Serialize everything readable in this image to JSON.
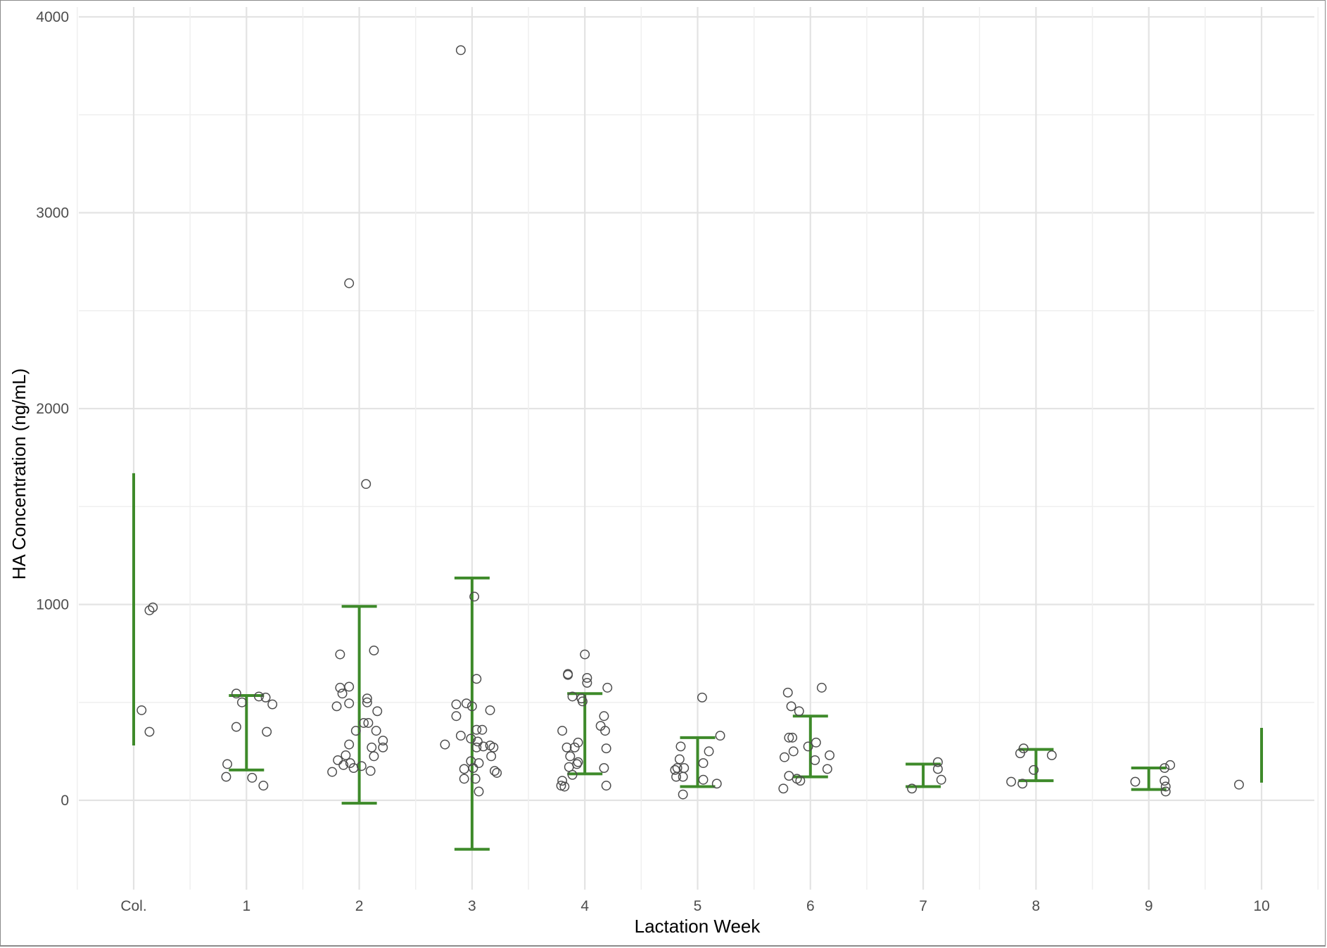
{
  "chart_data": {
    "type": "scatter",
    "title": "",
    "xlabel": "Lactation Week",
    "ylabel": "HA Concentration (ng/mL)",
    "categories": [
      "Col.",
      "1",
      "2",
      "3",
      "4",
      "5",
      "6",
      "7",
      "8",
      "9",
      "10"
    ],
    "ylim": [
      -450,
      4050
    ],
    "yticks": [
      0,
      1000,
      2000,
      3000,
      4000
    ],
    "grid": true,
    "legend": "none",
    "point_color": "#4d4d4d",
    "errorbar_color": "#3e8a2a",
    "points": [
      {
        "cat": 0,
        "dx": 0.07,
        "y": 460
      },
      {
        "cat": 0,
        "dx": 0.14,
        "y": 350
      },
      {
        "cat": 0,
        "dx": 0.14,
        "y": 970
      },
      {
        "cat": 0,
        "dx": 0.17,
        "y": 985
      },
      {
        "cat": 1,
        "dx": -0.18,
        "y": 120
      },
      {
        "cat": 1,
        "dx": -0.17,
        "y": 185
      },
      {
        "cat": 1,
        "dx": -0.09,
        "y": 375
      },
      {
        "cat": 1,
        "dx": -0.09,
        "y": 545
      },
      {
        "cat": 1,
        "dx": -0.04,
        "y": 500
      },
      {
        "cat": 1,
        "dx": 0.05,
        "y": 115
      },
      {
        "cat": 1,
        "dx": 0.11,
        "y": 530
      },
      {
        "cat": 1,
        "dx": 0.15,
        "y": 75
      },
      {
        "cat": 1,
        "dx": 0.17,
        "y": 525
      },
      {
        "cat": 1,
        "dx": 0.18,
        "y": 350
      },
      {
        "cat": 1,
        "dx": 0.23,
        "y": 490
      },
      {
        "cat": 2,
        "dx": 0.06,
        "y": 1615
      },
      {
        "cat": 2,
        "dx": -0.09,
        "y": 2640
      },
      {
        "cat": 2,
        "dx": -0.24,
        "y": 145
      },
      {
        "cat": 2,
        "dx": -0.19,
        "y": 205
      },
      {
        "cat": 2,
        "dx": -0.2,
        "y": 480
      },
      {
        "cat": 2,
        "dx": -0.17,
        "y": 745
      },
      {
        "cat": 2,
        "dx": -0.17,
        "y": 575
      },
      {
        "cat": 2,
        "dx": -0.15,
        "y": 545
      },
      {
        "cat": 2,
        "dx": -0.14,
        "y": 180
      },
      {
        "cat": 2,
        "dx": -0.12,
        "y": 230
      },
      {
        "cat": 2,
        "dx": -0.09,
        "y": 580
      },
      {
        "cat": 2,
        "dx": -0.09,
        "y": 495
      },
      {
        "cat": 2,
        "dx": -0.09,
        "y": 285
      },
      {
        "cat": 2,
        "dx": -0.08,
        "y": 190
      },
      {
        "cat": 2,
        "dx": -0.05,
        "y": 165
      },
      {
        "cat": 2,
        "dx": -0.03,
        "y": 355
      },
      {
        "cat": 2,
        "dx": 0.02,
        "y": 175
      },
      {
        "cat": 2,
        "dx": 0.04,
        "y": 395
      },
      {
        "cat": 2,
        "dx": 0.07,
        "y": 520
      },
      {
        "cat": 2,
        "dx": 0.07,
        "y": 500
      },
      {
        "cat": 2,
        "dx": 0.08,
        "y": 395
      },
      {
        "cat": 2,
        "dx": 0.1,
        "y": 150
      },
      {
        "cat": 2,
        "dx": 0.11,
        "y": 270
      },
      {
        "cat": 2,
        "dx": 0.13,
        "y": 765
      },
      {
        "cat": 2,
        "dx": 0.13,
        "y": 225
      },
      {
        "cat": 2,
        "dx": 0.15,
        "y": 355
      },
      {
        "cat": 2,
        "dx": 0.16,
        "y": 455
      },
      {
        "cat": 2,
        "dx": 0.21,
        "y": 305
      },
      {
        "cat": 2,
        "dx": 0.21,
        "y": 270
      },
      {
        "cat": 3,
        "dx": -0.1,
        "y": 3830
      },
      {
        "cat": 3,
        "dx": 0.02,
        "y": 1040
      },
      {
        "cat": 3,
        "dx": -0.24,
        "y": 285
      },
      {
        "cat": 3,
        "dx": -0.14,
        "y": 430
      },
      {
        "cat": 3,
        "dx": -0.14,
        "y": 490
      },
      {
        "cat": 3,
        "dx": -0.1,
        "y": 330
      },
      {
        "cat": 3,
        "dx": -0.07,
        "y": 110
      },
      {
        "cat": 3,
        "dx": -0.07,
        "y": 160
      },
      {
        "cat": 3,
        "dx": -0.05,
        "y": 495
      },
      {
        "cat": 3,
        "dx": -0.01,
        "y": 200
      },
      {
        "cat": 3,
        "dx": -0.01,
        "y": 315
      },
      {
        "cat": 3,
        "dx": 0.0,
        "y": 480
      },
      {
        "cat": 3,
        "dx": 0.01,
        "y": 165
      },
      {
        "cat": 3,
        "dx": 0.03,
        "y": 110
      },
      {
        "cat": 3,
        "dx": 0.04,
        "y": 620
      },
      {
        "cat": 3,
        "dx": 0.04,
        "y": 360
      },
      {
        "cat": 3,
        "dx": 0.04,
        "y": 270
      },
      {
        "cat": 3,
        "dx": 0.05,
        "y": 300
      },
      {
        "cat": 3,
        "dx": 0.06,
        "y": 190
      },
      {
        "cat": 3,
        "dx": 0.06,
        "y": 45
      },
      {
        "cat": 3,
        "dx": 0.09,
        "y": 360
      },
      {
        "cat": 3,
        "dx": 0.1,
        "y": 275
      },
      {
        "cat": 3,
        "dx": 0.16,
        "y": 460
      },
      {
        "cat": 3,
        "dx": 0.16,
        "y": 280
      },
      {
        "cat": 3,
        "dx": 0.17,
        "y": 225
      },
      {
        "cat": 3,
        "dx": 0.19,
        "y": 270
      },
      {
        "cat": 3,
        "dx": 0.2,
        "y": 150
      },
      {
        "cat": 3,
        "dx": 0.22,
        "y": 140
      },
      {
        "cat": 4,
        "dx": -0.21,
        "y": 75
      },
      {
        "cat": 4,
        "dx": -0.2,
        "y": 100
      },
      {
        "cat": 4,
        "dx": -0.2,
        "y": 355
      },
      {
        "cat": 4,
        "dx": -0.18,
        "y": 70
      },
      {
        "cat": 4,
        "dx": -0.16,
        "y": 270
      },
      {
        "cat": 4,
        "dx": -0.15,
        "y": 640
      },
      {
        "cat": 4,
        "dx": -0.15,
        "y": 645
      },
      {
        "cat": 4,
        "dx": -0.14,
        "y": 170
      },
      {
        "cat": 4,
        "dx": -0.13,
        "y": 225
      },
      {
        "cat": 4,
        "dx": -0.11,
        "y": 530
      },
      {
        "cat": 4,
        "dx": -0.11,
        "y": 130
      },
      {
        "cat": 4,
        "dx": -0.09,
        "y": 270
      },
      {
        "cat": 4,
        "dx": -0.07,
        "y": 185
      },
      {
        "cat": 4,
        "dx": -0.06,
        "y": 295
      },
      {
        "cat": 4,
        "dx": -0.06,
        "y": 195
      },
      {
        "cat": 4,
        "dx": -0.03,
        "y": 520
      },
      {
        "cat": 4,
        "dx": -0.02,
        "y": 505
      },
      {
        "cat": 4,
        "dx": 0.0,
        "y": 745
      },
      {
        "cat": 4,
        "dx": 0.02,
        "y": 625
      },
      {
        "cat": 4,
        "dx": 0.02,
        "y": 600
      },
      {
        "cat": 4,
        "dx": 0.14,
        "y": 380
      },
      {
        "cat": 4,
        "dx": 0.17,
        "y": 430
      },
      {
        "cat": 4,
        "dx": 0.17,
        "y": 165
      },
      {
        "cat": 4,
        "dx": 0.18,
        "y": 355
      },
      {
        "cat": 4,
        "dx": 0.19,
        "y": 265
      },
      {
        "cat": 4,
        "dx": 0.19,
        "y": 75
      },
      {
        "cat": 4,
        "dx": 0.2,
        "y": 575
      },
      {
        "cat": 5,
        "dx": -0.2,
        "y": 155
      },
      {
        "cat": 5,
        "dx": -0.19,
        "y": 120
      },
      {
        "cat": 5,
        "dx": -0.18,
        "y": 165
      },
      {
        "cat": 5,
        "dx": -0.16,
        "y": 210
      },
      {
        "cat": 5,
        "dx": -0.15,
        "y": 275
      },
      {
        "cat": 5,
        "dx": -0.13,
        "y": 120
      },
      {
        "cat": 5,
        "dx": -0.13,
        "y": 30
      },
      {
        "cat": 5,
        "dx": -0.12,
        "y": 165
      },
      {
        "cat": 5,
        "dx": 0.04,
        "y": 525
      },
      {
        "cat": 5,
        "dx": 0.05,
        "y": 190
      },
      {
        "cat": 5,
        "dx": 0.05,
        "y": 105
      },
      {
        "cat": 5,
        "dx": 0.1,
        "y": 250
      },
      {
        "cat": 5,
        "dx": 0.17,
        "y": 85
      },
      {
        "cat": 5,
        "dx": 0.2,
        "y": 330
      },
      {
        "cat": 6,
        "dx": -0.24,
        "y": 60
      },
      {
        "cat": 6,
        "dx": -0.23,
        "y": 220
      },
      {
        "cat": 6,
        "dx": -0.2,
        "y": 550
      },
      {
        "cat": 6,
        "dx": -0.19,
        "y": 125
      },
      {
        "cat": 6,
        "dx": -0.19,
        "y": 320
      },
      {
        "cat": 6,
        "dx": -0.17,
        "y": 480
      },
      {
        "cat": 6,
        "dx": -0.16,
        "y": 320
      },
      {
        "cat": 6,
        "dx": -0.15,
        "y": 250
      },
      {
        "cat": 6,
        "dx": -0.12,
        "y": 110
      },
      {
        "cat": 6,
        "dx": -0.1,
        "y": 455
      },
      {
        "cat": 6,
        "dx": -0.09,
        "y": 100
      },
      {
        "cat": 6,
        "dx": -0.02,
        "y": 275
      },
      {
        "cat": 6,
        "dx": 0.04,
        "y": 205
      },
      {
        "cat": 6,
        "dx": 0.05,
        "y": 295
      },
      {
        "cat": 6,
        "dx": 0.1,
        "y": 575
      },
      {
        "cat": 6,
        "dx": 0.15,
        "y": 160
      },
      {
        "cat": 6,
        "dx": 0.17,
        "y": 230
      },
      {
        "cat": 7,
        "dx": -0.1,
        "y": 60
      },
      {
        "cat": 7,
        "dx": 0.13,
        "y": 160
      },
      {
        "cat": 7,
        "dx": 0.13,
        "y": 195
      },
      {
        "cat": 7,
        "dx": 0.16,
        "y": 105
      },
      {
        "cat": 8,
        "dx": -0.22,
        "y": 95
      },
      {
        "cat": 8,
        "dx": -0.14,
        "y": 240
      },
      {
        "cat": 8,
        "dx": -0.12,
        "y": 85
      },
      {
        "cat": 8,
        "dx": -0.11,
        "y": 265
      },
      {
        "cat": 8,
        "dx": -0.02,
        "y": 155
      },
      {
        "cat": 8,
        "dx": 0.14,
        "y": 230
      },
      {
        "cat": 9,
        "dx": -0.12,
        "y": 95
      },
      {
        "cat": 9,
        "dx": 0.14,
        "y": 165
      },
      {
        "cat": 9,
        "dx": 0.14,
        "y": 100
      },
      {
        "cat": 9,
        "dx": 0.15,
        "y": 70
      },
      {
        "cat": 9,
        "dx": 0.15,
        "y": 45
      },
      {
        "cat": 9,
        "dx": 0.19,
        "y": 180
      },
      {
        "cat": 10,
        "dx": -0.2,
        "y": 80
      }
    ],
    "errorbars": [
      {
        "cat": 0,
        "ymin": 280,
        "ymax": 1670,
        "cap": false
      },
      {
        "cat": 1,
        "ymin": 155,
        "ymax": 535,
        "cap": true
      },
      {
        "cat": 2,
        "ymin": -15,
        "ymax": 990,
        "cap": true
      },
      {
        "cat": 3,
        "ymin": -250,
        "ymax": 1135,
        "cap": true
      },
      {
        "cat": 4,
        "ymin": 135,
        "ymax": 545,
        "cap": true
      },
      {
        "cat": 5,
        "ymin": 70,
        "ymax": 320,
        "cap": true
      },
      {
        "cat": 6,
        "ymin": 120,
        "ymax": 430,
        "cap": true
      },
      {
        "cat": 7,
        "ymin": 70,
        "ymax": 185,
        "cap": true
      },
      {
        "cat": 8,
        "ymin": 100,
        "ymax": 260,
        "cap": true
      },
      {
        "cat": 9,
        "ymin": 55,
        "ymax": 165,
        "cap": true
      },
      {
        "cat": 10,
        "ymin": 90,
        "ymax": 370,
        "cap": false
      }
    ]
  }
}
